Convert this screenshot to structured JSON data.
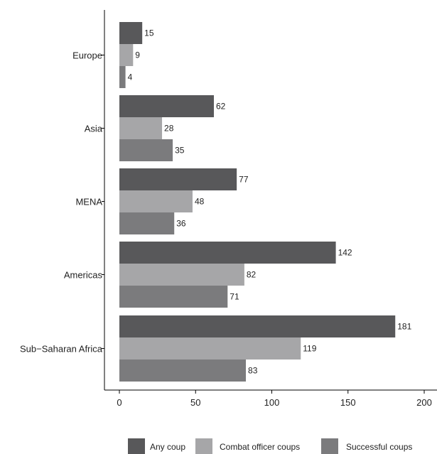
{
  "chart_data": {
    "type": "bar",
    "orientation": "horizontal",
    "categories": [
      "Europe",
      "Asia",
      "MENA",
      "Americas",
      "Sub−Saharan Africa"
    ],
    "series": [
      {
        "name": "Any coup",
        "values": [
          15,
          62,
          77,
          142,
          181
        ],
        "color": "#58585a"
      },
      {
        "name": "Combat officer coups",
        "values": [
          9,
          28,
          48,
          82,
          119
        ],
        "color": "#a6a6a8"
      },
      {
        "name": "Successful coups",
        "values": [
          4,
          35,
          36,
          71,
          83
        ],
        "color": "#7b7b7d"
      }
    ],
    "x_ticks": [
      0,
      50,
      100,
      150,
      200
    ],
    "xlim": [
      0,
      200
    ],
    "title": "",
    "xlabel": "",
    "ylabel": "",
    "grid": false,
    "legend_position": "bottom"
  }
}
